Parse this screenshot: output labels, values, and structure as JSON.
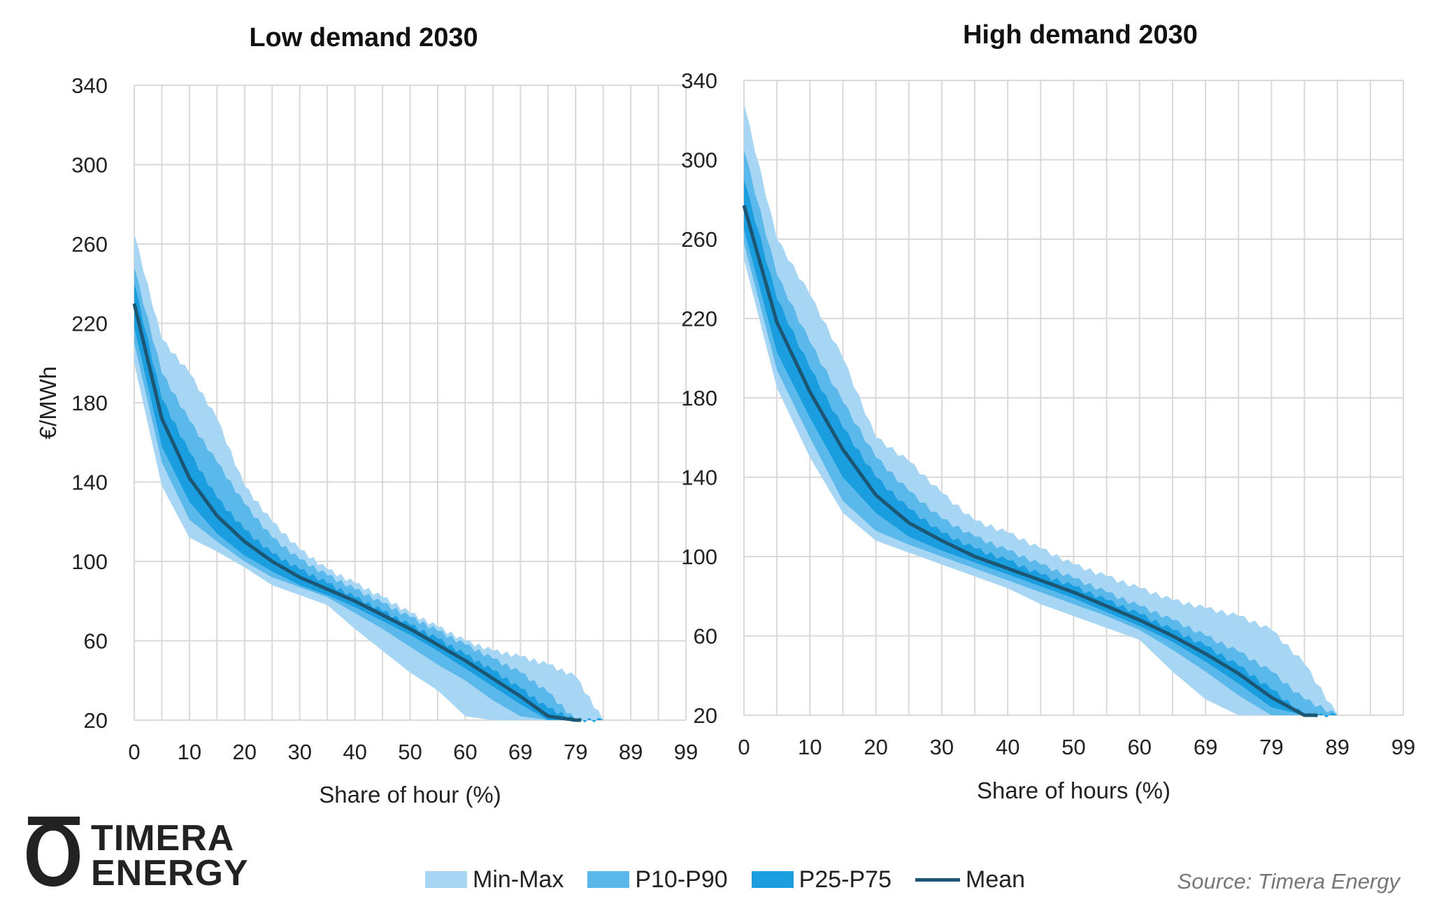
{
  "colors": {
    "min_max": "#a7d6f4",
    "p10_p90": "#5ab8ea",
    "p25_p75": "#1b9ee0",
    "mean": "#1b5674",
    "grid": "#d9d9d9"
  },
  "legend": {
    "min_max": "Min-Max",
    "p10_p90": "P10-P90",
    "p25_p75": "P25-P75",
    "mean": "Mean"
  },
  "source": "Source: Timera Energy",
  "logo": {
    "line1": "TIMERA",
    "line2": "ENERGY"
  },
  "chart_data": [
    {
      "type": "area",
      "title": "Low demand 2030",
      "xlabel": "Share of hour (%)",
      "ylabel": "€/MWh",
      "x_tick_labels": [
        "0",
        "10",
        "20",
        "30",
        "40",
        "50",
        "60",
        "69",
        "79",
        "89",
        "99"
      ],
      "ylim": [
        20,
        340
      ],
      "y_ticks": [
        20,
        60,
        100,
        140,
        180,
        220,
        260,
        300,
        340
      ],
      "x": [
        0,
        5,
        10,
        15,
        20,
        25,
        30,
        35,
        40,
        45,
        50,
        55,
        60,
        65,
        70,
        75,
        80,
        85
      ],
      "series": [
        {
          "name": "Min-Max",
          "lower": [
            200,
            138,
            112,
            105,
            97,
            88,
            83,
            78,
            66,
            55,
            44,
            35,
            22,
            20,
            20,
            20,
            20,
            20
          ],
          "upper": [
            265,
            212,
            195,
            172,
            138,
            120,
            106,
            96,
            89,
            82,
            74,
            67,
            60,
            55,
            52,
            48,
            42,
            20
          ]
        },
        {
          "name": "P10-P90",
          "lower": [
            210,
            150,
            121,
            110,
            100,
            92,
            87,
            82,
            74,
            66,
            57,
            48,
            40,
            30,
            22,
            20,
            20,
            20
          ]
        },
        {
          "name": "P10-P90 upper",
          "upper": [
            248,
            195,
            171,
            150,
            129,
            112,
            101,
            93,
            86,
            79,
            72,
            65,
            58,
            51,
            44,
            34,
            20,
            20
          ]
        },
        {
          "name": "P25-P75",
          "lower": [
            218,
            158,
            130,
            114,
            103,
            95,
            88,
            83,
            77,
            70,
            63,
            55,
            46,
            37,
            28,
            20,
            20,
            20
          ],
          "upper": [
            240,
            182,
            155,
            132,
            116,
            104,
            96,
            89,
            82,
            75,
            68,
            61,
            53,
            45,
            36,
            26,
            20,
            20
          ]
        },
        {
          "name": "Mean",
          "values": [
            230,
            172,
            142,
            123,
            110,
            100,
            92,
            86,
            80,
            73,
            66,
            58,
            50,
            41,
            32,
            22,
            20,
            20
          ]
        }
      ],
      "mean_end_x": 81,
      "band_end_x": {
        "min_max": 88,
        "p10_p90": 86,
        "p25_p75": 84
      },
      "grid": true
    },
    {
      "type": "area",
      "title": "High demand 2030",
      "xlabel": "Share of hours (%)",
      "ylabel": "",
      "x_tick_labels": [
        "0",
        "10",
        "20",
        "30",
        "40",
        "50",
        "60",
        "69",
        "79",
        "89",
        "99"
      ],
      "ylim": [
        20,
        340
      ],
      "y_ticks": [
        20,
        60,
        100,
        140,
        180,
        220,
        260,
        300,
        340
      ],
      "x": [
        0,
        5,
        10,
        15,
        20,
        25,
        30,
        35,
        40,
        45,
        50,
        55,
        60,
        65,
        70,
        75,
        80,
        85,
        90
      ],
      "series": [
        {
          "name": "Min-Max",
          "lower": [
            250,
            185,
            150,
            122,
            108,
            102,
            96,
            90,
            84,
            76,
            70,
            64,
            58,
            42,
            28,
            20,
            20,
            20,
            20
          ],
          "upper": [
            328,
            260,
            232,
            200,
            160,
            148,
            132,
            118,
            112,
            104,
            96,
            90,
            84,
            78,
            74,
            70,
            63,
            46,
            20
          ]
        },
        {
          "name": "P10-P90",
          "lower": [
            258,
            194,
            160,
            128,
            113,
            106,
            100,
            94,
            88,
            82,
            76,
            70,
            63,
            53,
            42,
            30,
            20,
            20,
            20
          ],
          "upper": [
            305,
            242,
            208,
            178,
            150,
            133,
            119,
            110,
            103,
            96,
            89,
            82,
            75,
            68,
            60,
            52,
            42,
            28,
            20
          ]
        },
        {
          "name": "P25-P75",
          "lower": [
            265,
            203,
            170,
            140,
            122,
            110,
            103,
            97,
            91,
            85,
            79,
            72,
            65,
            57,
            47,
            36,
            24,
            20,
            20
          ],
          "upper": [
            290,
            230,
            195,
            165,
            140,
            124,
            112,
            104,
            98,
            91,
            85,
            78,
            71,
            63,
            55,
            45,
            33,
            20,
            20
          ]
        },
        {
          "name": "Mean",
          "values": [
            277,
            218,
            183,
            154,
            131,
            117,
            108,
            100,
            94,
            88,
            82,
            75,
            68,
            60,
            51,
            41,
            29,
            20,
            20
          ]
        }
      ],
      "mean_end_x": 87,
      "band_end_x": {
        "min_max": 92,
        "p10_p90": 90,
        "p25_p75": 88
      },
      "grid": true
    }
  ]
}
